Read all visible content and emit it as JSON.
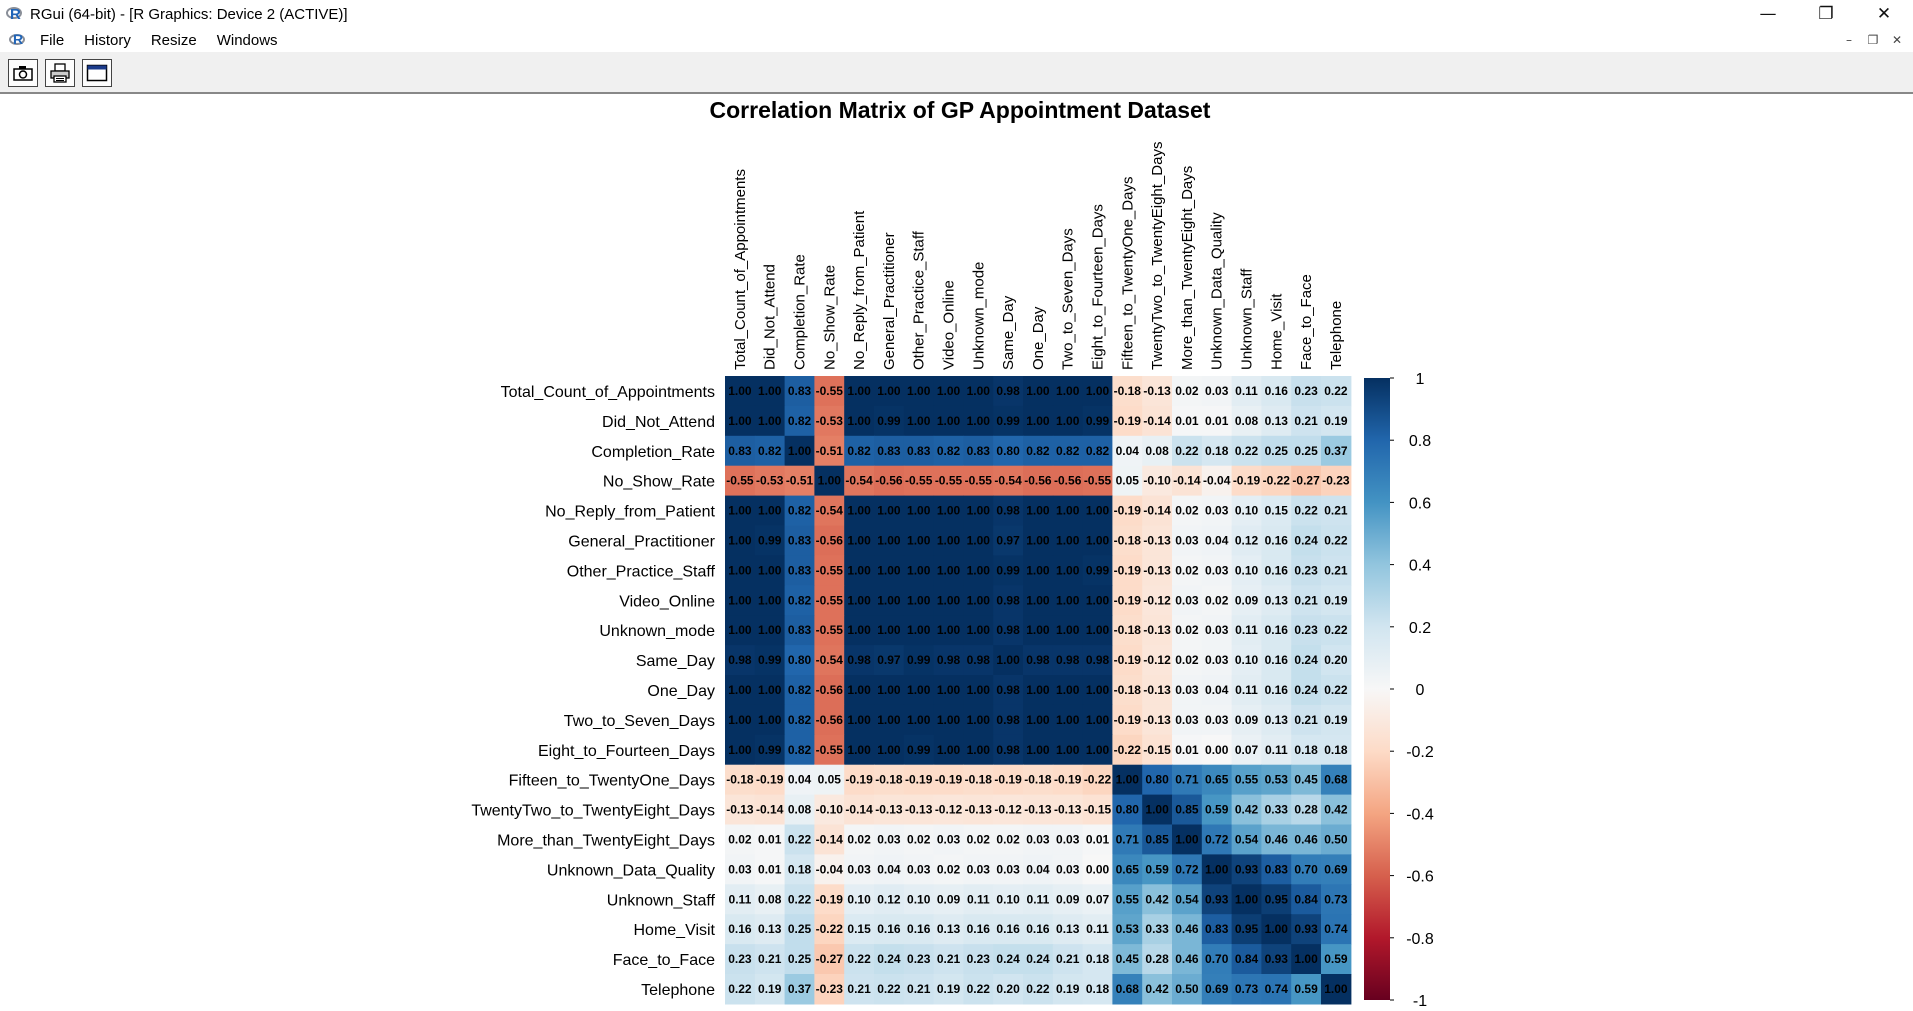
{
  "window": {
    "title": "RGui (64-bit) - [R Graphics: Device 2 (ACTIVE)]",
    "minimize_icon": "minimize-icon",
    "restore_icon": "restore-icon",
    "close_icon": "close-icon"
  },
  "menu": {
    "items": [
      "File",
      "History",
      "Resize",
      "Windows"
    ]
  },
  "toolbar": {
    "buttons": [
      "copy-metafile-icon",
      "print-icon",
      "window-icon"
    ]
  },
  "chart_data": {
    "type": "heatmap",
    "title": "Correlation Matrix of GP Appointment Dataset",
    "variables": [
      "Total_Count_of_Appointments",
      "Did_Not_Attend",
      "Completion_Rate",
      "No_Show_Rate",
      "No_Reply_from_Patient",
      "General_Practitioner",
      "Other_Practice_Staff",
      "Video_Online",
      "Unknown_mode",
      "Same_Day",
      "One_Day",
      "Two_to_Seven_Days",
      "Eight_to_Fourteen_Days",
      "Fifteen_to_TwentyOne_Days",
      "TwentyTwo_to_TwentyEight_Days",
      "More_than_TwentyEight_Days",
      "Unknown_Data_Quality",
      "Unknown_Staff",
      "Home_Visit",
      "Face_to_Face",
      "Telephone"
    ],
    "matrix": [
      [
        1.0,
        1.0,
        0.83,
        -0.55,
        1.0,
        1.0,
        1.0,
        1.0,
        1.0,
        0.98,
        1.0,
        1.0,
        1.0,
        -0.18,
        -0.13,
        0.02,
        0.03,
        0.11,
        0.16,
        0.23,
        0.22
      ],
      [
        1.0,
        1.0,
        0.82,
        -0.53,
        1.0,
        0.99,
        1.0,
        1.0,
        1.0,
        0.99,
        1.0,
        1.0,
        0.99,
        -0.19,
        -0.14,
        0.01,
        0.01,
        0.08,
        0.13,
        0.21,
        0.19
      ],
      [
        0.83,
        0.82,
        1.0,
        -0.51,
        0.82,
        0.83,
        0.83,
        0.82,
        0.83,
        0.8,
        0.82,
        0.82,
        0.82,
        0.04,
        0.08,
        0.22,
        0.18,
        0.22,
        0.25,
        0.25,
        0.37
      ],
      [
        -0.55,
        -0.53,
        -0.51,
        1.0,
        -0.54,
        -0.56,
        -0.55,
        -0.55,
        -0.55,
        -0.54,
        -0.56,
        -0.56,
        -0.55,
        0.05,
        -0.1,
        -0.14,
        -0.04,
        -0.19,
        -0.22,
        -0.27,
        -0.23
      ],
      [
        1.0,
        1.0,
        0.82,
        -0.54,
        1.0,
        1.0,
        1.0,
        1.0,
        1.0,
        0.98,
        1.0,
        1.0,
        1.0,
        -0.19,
        -0.14,
        0.02,
        0.03,
        0.1,
        0.15,
        0.22,
        0.21
      ],
      [
        1.0,
        0.99,
        0.83,
        -0.56,
        1.0,
        1.0,
        1.0,
        1.0,
        1.0,
        0.97,
        1.0,
        1.0,
        1.0,
        -0.18,
        -0.13,
        0.03,
        0.04,
        0.12,
        0.16,
        0.24,
        0.22
      ],
      [
        1.0,
        1.0,
        0.83,
        -0.55,
        1.0,
        1.0,
        1.0,
        1.0,
        1.0,
        0.99,
        1.0,
        1.0,
        0.99,
        -0.19,
        -0.13,
        0.02,
        0.03,
        0.1,
        0.16,
        0.23,
        0.21
      ],
      [
        1.0,
        1.0,
        0.82,
        -0.55,
        1.0,
        1.0,
        1.0,
        1.0,
        1.0,
        0.98,
        1.0,
        1.0,
        1.0,
        -0.19,
        -0.12,
        0.03,
        0.02,
        0.09,
        0.13,
        0.21,
        0.19
      ],
      [
        1.0,
        1.0,
        0.83,
        -0.55,
        1.0,
        1.0,
        1.0,
        1.0,
        1.0,
        0.98,
        1.0,
        1.0,
        1.0,
        -0.18,
        -0.13,
        0.02,
        0.03,
        0.11,
        0.16,
        0.23,
        0.22
      ],
      [
        0.98,
        0.99,
        0.8,
        -0.54,
        0.98,
        0.97,
        0.99,
        0.98,
        0.98,
        1.0,
        0.98,
        0.98,
        0.98,
        -0.19,
        -0.12,
        0.02,
        0.03,
        0.1,
        0.16,
        0.24,
        0.2
      ],
      [
        1.0,
        1.0,
        0.82,
        -0.56,
        1.0,
        1.0,
        1.0,
        1.0,
        1.0,
        0.98,
        1.0,
        1.0,
        1.0,
        -0.18,
        -0.13,
        0.03,
        0.04,
        0.11,
        0.16,
        0.24,
        0.22
      ],
      [
        1.0,
        1.0,
        0.82,
        -0.56,
        1.0,
        1.0,
        1.0,
        1.0,
        1.0,
        0.98,
        1.0,
        1.0,
        1.0,
        -0.19,
        -0.13,
        0.03,
        0.03,
        0.09,
        0.13,
        0.21,
        0.19
      ],
      [
        1.0,
        0.99,
        0.82,
        -0.55,
        1.0,
        1.0,
        0.99,
        1.0,
        1.0,
        0.98,
        1.0,
        1.0,
        1.0,
        -0.22,
        -0.15,
        0.01,
        0.0,
        0.07,
        0.11,
        0.18,
        0.18
      ],
      [
        -0.18,
        -0.19,
        0.04,
        0.05,
        -0.19,
        -0.18,
        -0.19,
        -0.19,
        -0.18,
        -0.19,
        -0.18,
        -0.19,
        -0.22,
        1.0,
        0.8,
        0.71,
        0.65,
        0.55,
        0.53,
        0.45,
        0.68
      ],
      [
        -0.13,
        -0.14,
        0.08,
        -0.1,
        -0.14,
        -0.13,
        -0.13,
        -0.12,
        -0.13,
        -0.12,
        -0.13,
        -0.13,
        -0.15,
        0.8,
        1.0,
        0.85,
        0.59,
        0.42,
        0.33,
        0.28,
        0.42
      ],
      [
        0.02,
        0.01,
        0.22,
        -0.14,
        0.02,
        0.03,
        0.02,
        0.03,
        0.02,
        0.02,
        0.03,
        0.03,
        0.01,
        0.71,
        0.85,
        1.0,
        0.72,
        0.54,
        0.46,
        0.46,
        0.5
      ],
      [
        0.03,
        0.01,
        0.18,
        -0.04,
        0.03,
        0.04,
        0.03,
        0.02,
        0.03,
        0.03,
        0.04,
        0.03,
        0.0,
        0.65,
        0.59,
        0.72,
        1.0,
        0.93,
        0.83,
        0.7,
        0.69
      ],
      [
        0.11,
        0.08,
        0.22,
        -0.19,
        0.1,
        0.12,
        0.1,
        0.09,
        0.11,
        0.1,
        0.11,
        0.09,
        0.07,
        0.55,
        0.42,
        0.54,
        0.93,
        1.0,
        0.95,
        0.84,
        0.73
      ],
      [
        0.16,
        0.13,
        0.25,
        -0.22,
        0.15,
        0.16,
        0.16,
        0.13,
        0.16,
        0.16,
        0.16,
        0.13,
        0.11,
        0.53,
        0.33,
        0.46,
        0.83,
        0.95,
        1.0,
        0.93,
        0.74
      ],
      [
        0.23,
        0.21,
        0.25,
        -0.27,
        0.22,
        0.24,
        0.23,
        0.21,
        0.23,
        0.24,
        0.24,
        0.21,
        0.18,
        0.45,
        0.28,
        0.46,
        0.7,
        0.84,
        0.93,
        1.0,
        0.59
      ],
      [
        0.22,
        0.19,
        0.37,
        -0.23,
        0.21,
        0.22,
        0.21,
        0.19,
        0.22,
        0.2,
        0.22,
        0.19,
        0.18,
        0.68,
        0.42,
        0.5,
        0.69,
        0.73,
        0.74,
        0.59,
        1.0
      ]
    ],
    "legend": {
      "ticks": [
        "1",
        "0.8",
        "0.6",
        "0.4",
        "0.2",
        "0",
        "-0.2",
        "-0.4",
        "-0.6",
        "-0.8",
        "-1"
      ],
      "range": [
        -1,
        1
      ],
      "placement": "right"
    },
    "colors": {
      "neg": "#67001f",
      "mid": "#f7f7f7",
      "pos": "#053061"
    }
  }
}
